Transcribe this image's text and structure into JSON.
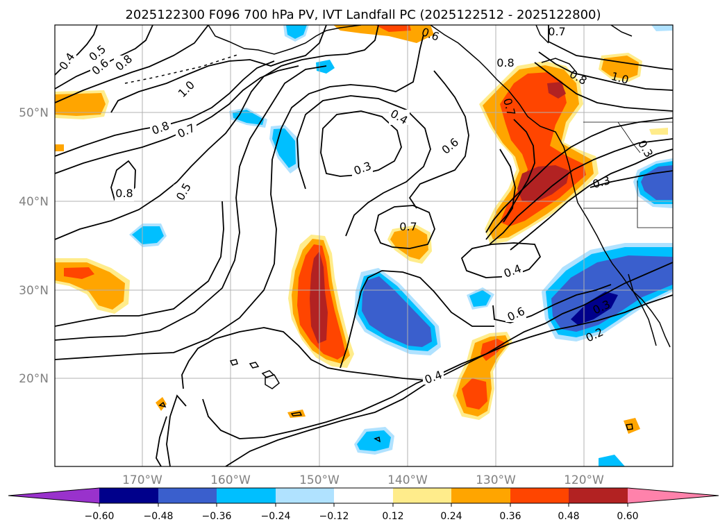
{
  "title": "2025122300 F096 700 hPa PV, IVT Landfall PC (2025122512 - 2025122800)",
  "lat_labels": [
    "50°N",
    "40°N",
    "30°N",
    "20°N"
  ],
  "lon_labels": [
    "170°W",
    "160°W",
    "150°W",
    "140°W",
    "130°W",
    "120°W"
  ],
  "contour_labels": {
    "c04a": "0.4",
    "c05a": "0.5",
    "c06a": "0.6",
    "c08a": "0.8",
    "c10a": "1.0",
    "c08b": "0.8",
    "c07b": "0.7",
    "c08c": "0.8",
    "c05b": "0.5",
    "c04b": "0.4",
    "c03a": "0.3",
    "c06b": "0.6",
    "c07c": "0.7",
    "c04c": "0.4",
    "c06c": "0.6",
    "c04d": "0.4",
    "c02a": "0.2",
    "c03b": "0.3",
    "c06d": "0.6",
    "c07d": "0.7",
    "c08d": "0.8",
    "c08e": "0.8",
    "c10b": "1.0",
    "c03c": "0.3",
    "c03d": "0.3",
    "c07e": "0.7"
  },
  "colorbar": {
    "ticks": [
      "−0.60",
      "−0.48",
      "−0.36",
      "−0.24",
      "−0.12",
      "0.12",
      "0.24",
      "0.36",
      "0.48",
      "0.60"
    ],
    "colors": [
      "#9932cc",
      "#00008b",
      "#3a5fcd",
      "#00bfff",
      "#b0e2ff",
      "#ffffff",
      "#ffec8b",
      "#ffa500",
      "#ff4500",
      "#b22222",
      "#ff82ab"
    ]
  },
  "colors": {
    "neg_light": "#b0e2ff",
    "neg_mid": "#00bfff",
    "neg_strong": "#3a5fcd",
    "neg_max": "#00008b",
    "pos_light": "#ffec8b",
    "pos_mid": "#ffa500",
    "pos_strong": "#ff4500",
    "pos_max": "#b22222",
    "contour": "#000000",
    "grid": "#b0b0b0",
    "label_gray": "#808080"
  }
}
